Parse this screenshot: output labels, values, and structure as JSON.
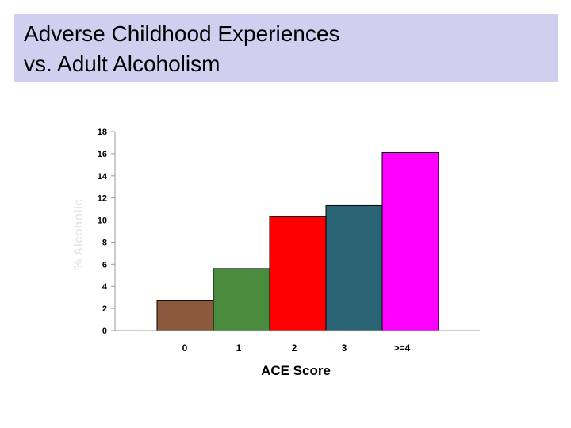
{
  "slide": {
    "title_line1": "Adverse Childhood Experiences",
    "title_line2": "vs. Adult Alcoholism"
  },
  "colors": {
    "title_background": "#cfd0ef",
    "axis": "#999999",
    "bar_outline": "#000000"
  },
  "chart_data": {
    "type": "bar",
    "categories": [
      "0",
      "1",
      "2",
      "3",
      ">=4"
    ],
    "values": [
      2.7,
      5.6,
      10.3,
      11.3,
      16.1
    ],
    "bar_colors": [
      "#8b5a3c",
      "#4a8a3c",
      "#ff0000",
      "#2a6474",
      "#ff00ff"
    ],
    "title": "",
    "xlabel": "ACE Score",
    "ylabel": "% Alcoholic",
    "ylim": [
      0,
      18
    ],
    "yticks": [
      "0",
      "2",
      "4",
      "6",
      "8",
      "10",
      "12",
      "14",
      "16",
      "18"
    ],
    "grid": false,
    "legend": "none"
  }
}
